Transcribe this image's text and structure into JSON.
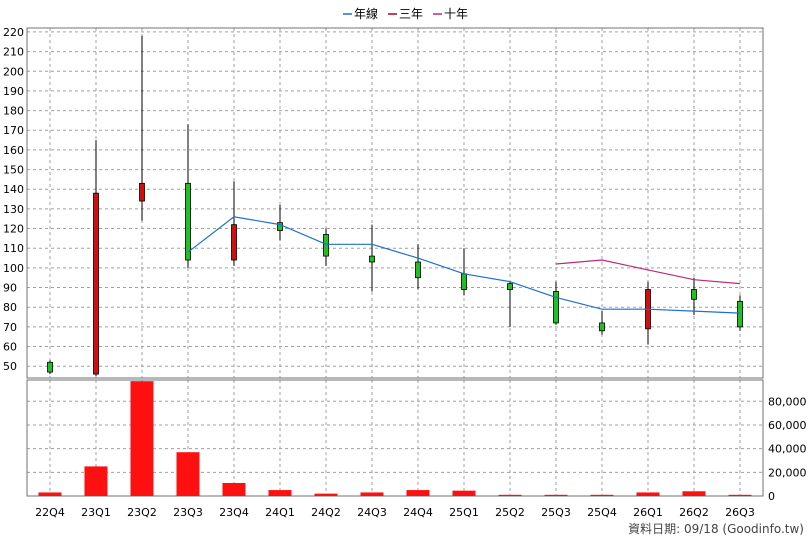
{
  "legend": {
    "items": [
      {
        "label": "年線",
        "color": "#1e6fd0"
      },
      {
        "label": "三年",
        "color": "#b00020"
      },
      {
        "label": "十年",
        "color": "#c0287a"
      }
    ]
  },
  "source_note": "資料日期: 09/18 (Goodinfo.tw)",
  "chart_data": [
    {
      "type": "candlestick",
      "categories": [
        "22Q4",
        "23Q1",
        "23Q2",
        "23Q3",
        "23Q4",
        "24Q1",
        "24Q2",
        "24Q3",
        "24Q4",
        "25Q1",
        "25Q2",
        "25Q3",
        "25Q4",
        "26Q1",
        "26Q2",
        "26Q3"
      ],
      "ylim": [
        44,
        222
      ],
      "yticks": [
        50,
        60,
        70,
        80,
        90,
        100,
        110,
        120,
        130,
        140,
        150,
        160,
        170,
        180,
        190,
        200,
        210,
        220
      ],
      "grid": true,
      "candles": [
        {
          "open": 47,
          "close": 52,
          "high": 53,
          "low": 46
        },
        {
          "open": 138,
          "close": 46,
          "high": 165,
          "low": 45
        },
        {
          "open": 143,
          "close": 134,
          "high": 218,
          "low": 124
        },
        {
          "open": 104,
          "close": 143,
          "high": 173,
          "low": 100
        },
        {
          "open": 122,
          "close": 104,
          "high": 144,
          "low": 101
        },
        {
          "open": 119,
          "close": 123,
          "high": 132,
          "low": 114
        },
        {
          "open": 106,
          "close": 117,
          "high": 120,
          "low": 101
        },
        {
          "open": 103,
          "close": 106,
          "high": 122,
          "low": 88
        },
        {
          "open": 95,
          "close": 103,
          "high": 112,
          "low": 89
        },
        {
          "open": 89,
          "close": 97,
          "high": 110,
          "low": 86
        },
        {
          "open": 89,
          "close": 92,
          "high": 93,
          "low": 70
        },
        {
          "open": 72,
          "close": 88,
          "high": 93,
          "low": 71
        },
        {
          "open": 68,
          "close": 72,
          "high": 78,
          "low": 66
        },
        {
          "open": 89,
          "close": 69,
          "high": 93,
          "low": 61
        },
        {
          "open": 84,
          "close": 89,
          "high": 95,
          "low": 76
        },
        {
          "open": 70,
          "close": 83,
          "high": 86,
          "low": 68
        }
      ],
      "colors": {
        "up": "#22c022",
        "down": "#d01010"
      },
      "series": [
        {
          "name": "年線",
          "color": "#1e6fd0",
          "values": [
            null,
            null,
            null,
            108,
            126,
            122,
            112,
            112,
            105,
            97,
            93,
            85,
            79,
            79,
            78,
            77
          ]
        },
        {
          "name": "十年",
          "color": "#c0287a",
          "values": [
            null,
            null,
            null,
            null,
            null,
            null,
            null,
            null,
            null,
            null,
            null,
            102,
            104,
            99,
            94,
            92
          ]
        }
      ]
    },
    {
      "type": "bar",
      "categories": [
        "22Q4",
        "23Q1",
        "23Q2",
        "23Q3",
        "23Q4",
        "24Q1",
        "24Q2",
        "24Q3",
        "24Q4",
        "25Q1",
        "25Q2",
        "25Q3",
        "25Q4",
        "26Q1",
        "26Q2",
        "26Q3"
      ],
      "values": [
        3000,
        25000,
        97000,
        37000,
        11000,
        5000,
        2000,
        3000,
        5000,
        4500,
        1000,
        1000,
        1000,
        3000,
        4000,
        1000
      ],
      "ylim": [
        0,
        98000
      ],
      "yticks": [
        0,
        20000,
        40000,
        60000,
        80000
      ],
      "ytick_labels": [
        "0",
        "20,000",
        "40,000",
        "60,000",
        "80,000"
      ],
      "bar_color": "#ff1010",
      "grid": true
    }
  ]
}
